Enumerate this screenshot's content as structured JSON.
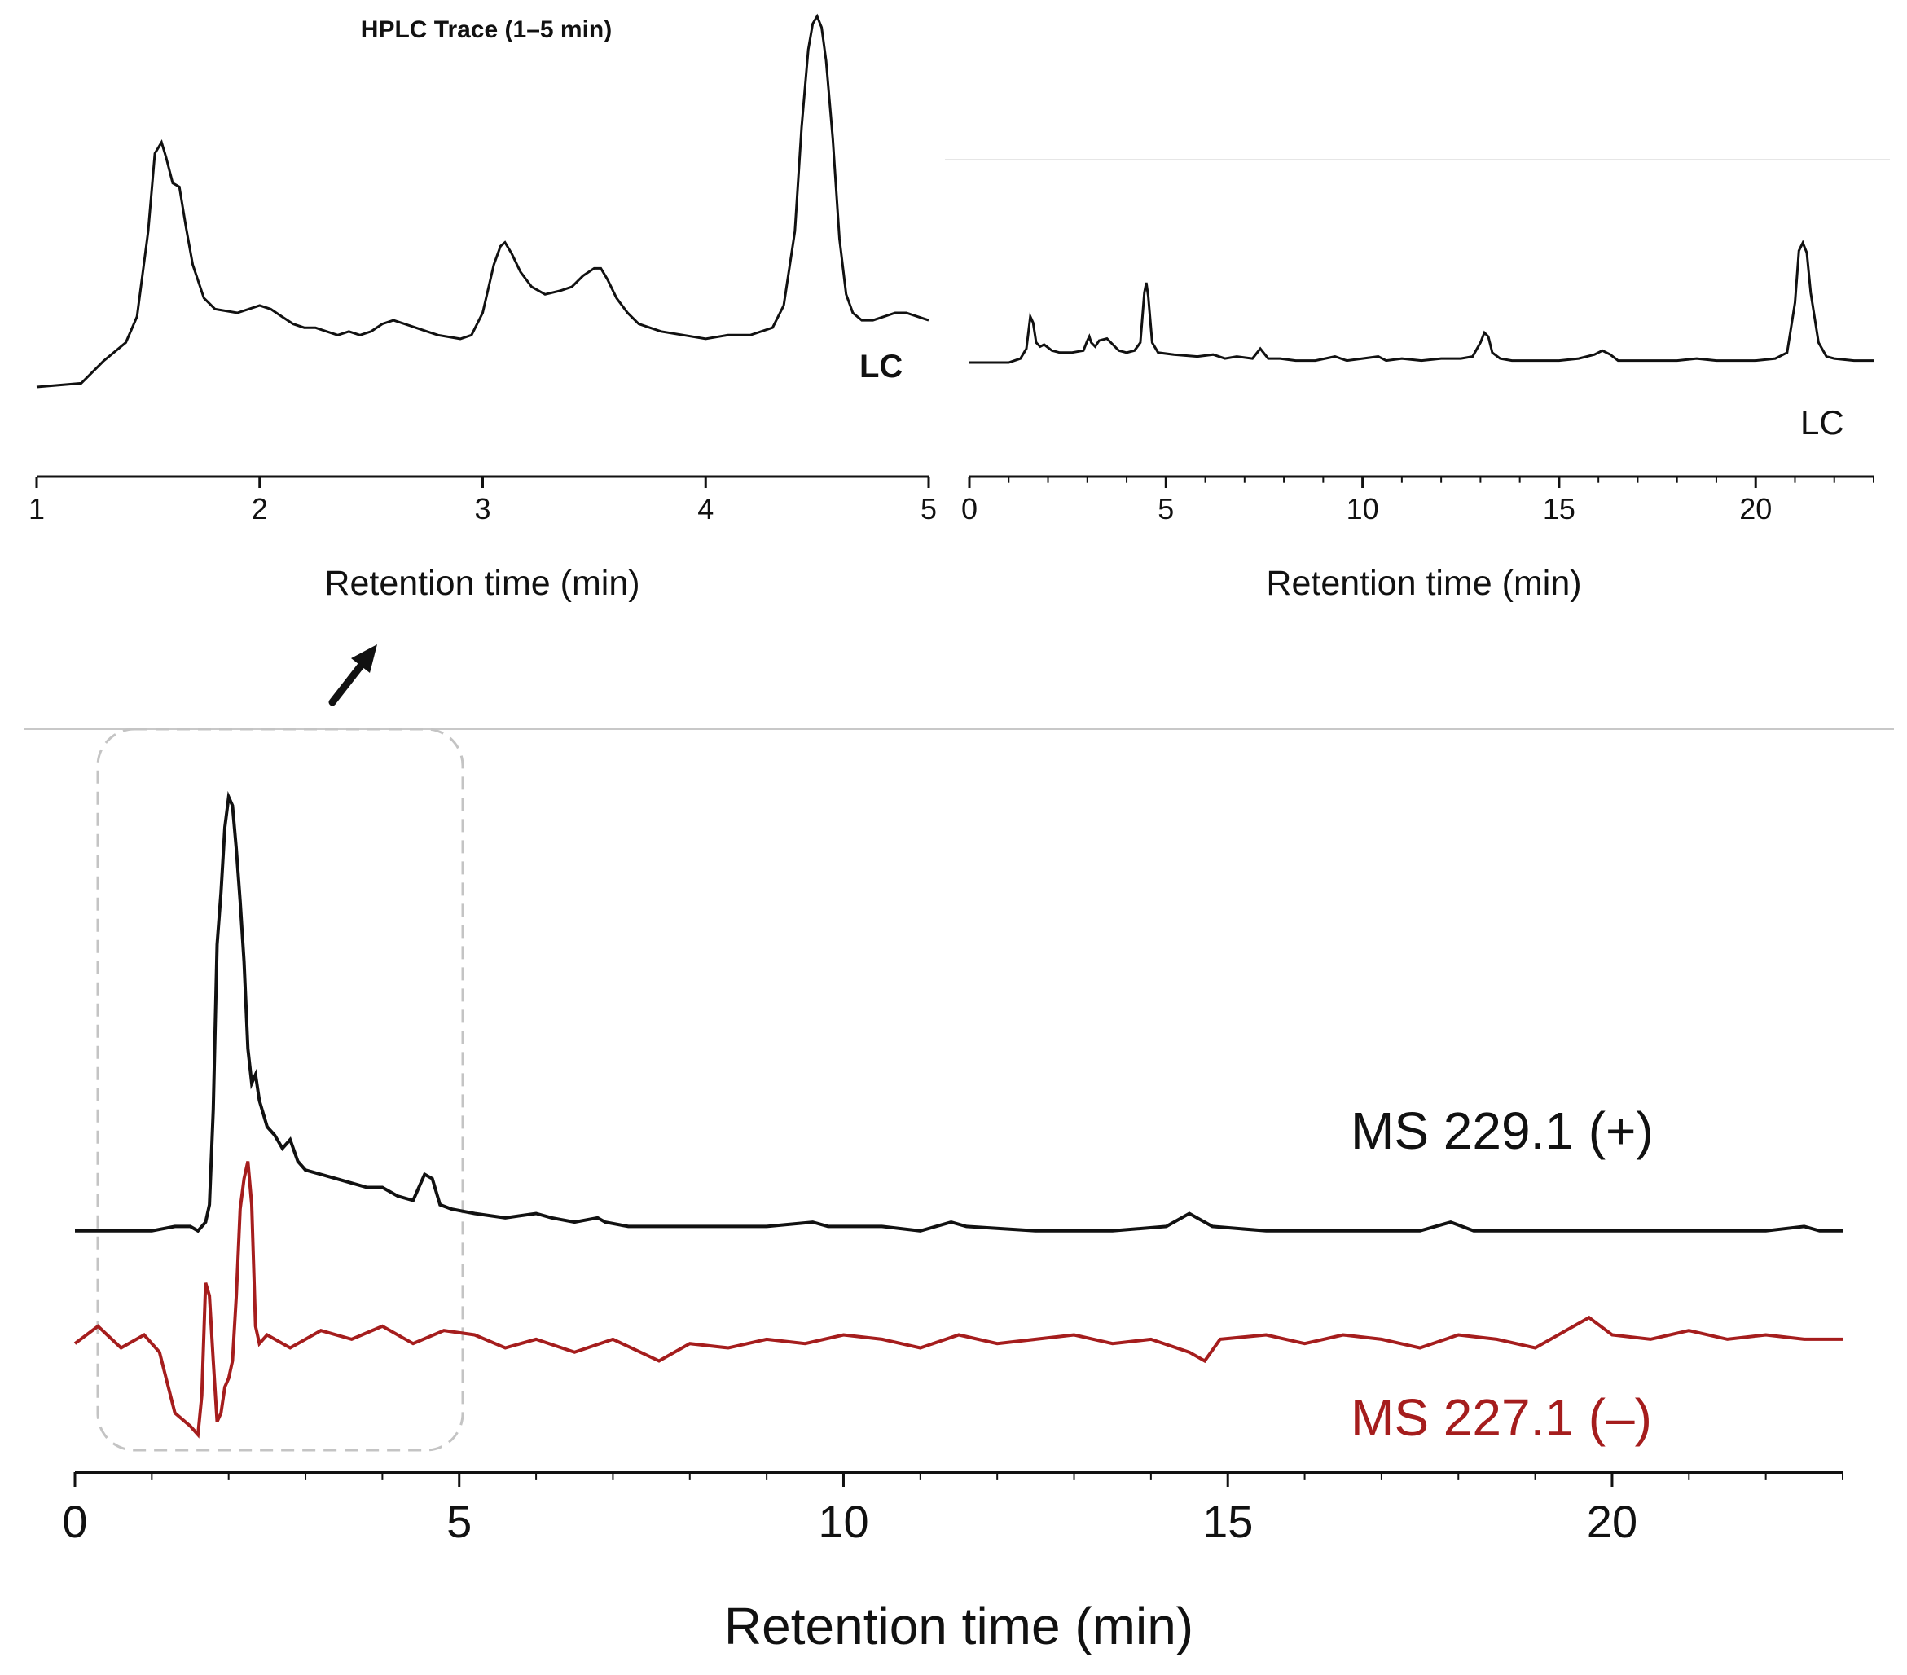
{
  "colors": {
    "black_trace": "#111111",
    "red_trace": "#a51d1d",
    "divider": "#c8c8c8",
    "dashed_box": "#c4c4c4"
  },
  "chart_data": [
    {
      "id": "inset",
      "type": "line",
      "title": "HPLC Trace (1–5 min)",
      "xlabel": "Retention time (min)",
      "ylabel": "",
      "xlim": [
        1,
        5
      ],
      "ylim": [
        0,
        1
      ],
      "xticks": [
        1,
        2,
        3,
        4,
        5
      ],
      "series": [
        {
          "name": "LC",
          "label_text": "LC",
          "x": [
            1.0,
            1.2,
            1.3,
            1.4,
            1.45,
            1.5,
            1.53,
            1.56,
            1.58,
            1.61,
            1.64,
            1.67,
            1.7,
            1.75,
            1.8,
            1.9,
            2.0,
            2.05,
            2.1,
            2.15,
            2.2,
            2.25,
            2.3,
            2.35,
            2.4,
            2.45,
            2.5,
            2.55,
            2.6,
            2.65,
            2.7,
            2.75,
            2.8,
            2.9,
            2.95,
            3.0,
            3.05,
            3.08,
            3.1,
            3.13,
            3.17,
            3.22,
            3.28,
            3.35,
            3.4,
            3.45,
            3.5,
            3.53,
            3.56,
            3.6,
            3.65,
            3.7,
            3.75,
            3.8,
            3.9,
            4.0,
            4.1,
            4.2,
            4.3,
            4.35,
            4.4,
            4.43,
            4.46,
            4.48,
            4.5,
            4.52,
            4.54,
            4.57,
            4.6,
            4.63,
            4.66,
            4.7,
            4.75,
            4.8,
            4.85,
            4.9,
            4.95,
            5.0
          ],
          "y": [
            0.0,
            0.01,
            0.07,
            0.12,
            0.19,
            0.42,
            0.63,
            0.66,
            0.62,
            0.55,
            0.54,
            0.43,
            0.33,
            0.24,
            0.21,
            0.2,
            0.22,
            0.21,
            0.19,
            0.17,
            0.16,
            0.16,
            0.15,
            0.14,
            0.15,
            0.14,
            0.15,
            0.17,
            0.18,
            0.17,
            0.16,
            0.15,
            0.14,
            0.13,
            0.14,
            0.2,
            0.33,
            0.38,
            0.39,
            0.36,
            0.31,
            0.27,
            0.25,
            0.26,
            0.27,
            0.3,
            0.32,
            0.32,
            0.29,
            0.24,
            0.2,
            0.17,
            0.16,
            0.15,
            0.14,
            0.13,
            0.14,
            0.14,
            0.16,
            0.22,
            0.42,
            0.7,
            0.91,
            0.98,
            1.0,
            0.97,
            0.88,
            0.67,
            0.4,
            0.25,
            0.2,
            0.18,
            0.18,
            0.19,
            0.2,
            0.2,
            0.19,
            0.18
          ]
        }
      ]
    },
    {
      "id": "overview",
      "type": "line",
      "title": "",
      "xlabel": "Retention time (min)",
      "ylabel": "",
      "xlim": [
        0,
        23
      ],
      "ylim": [
        0,
        1
      ],
      "xticks": [
        0,
        5,
        10,
        15,
        20
      ],
      "series": [
        {
          "name": "LC",
          "label_text": "LC",
          "x": [
            0,
            1.0,
            1.3,
            1.45,
            1.55,
            1.62,
            1.7,
            1.8,
            1.9,
            2.1,
            2.3,
            2.6,
            2.9,
            3.0,
            3.05,
            3.1,
            3.2,
            3.3,
            3.5,
            3.6,
            3.8,
            4.0,
            4.2,
            4.35,
            4.45,
            4.5,
            4.55,
            4.65,
            4.8,
            5.2,
            5.8,
            6.2,
            6.5,
            6.8,
            7.2,
            7.4,
            7.6,
            7.9,
            8.3,
            8.8,
            9.3,
            9.6,
            10.0,
            10.4,
            10.6,
            11.0,
            11.5,
            12.0,
            12.5,
            12.8,
            13.0,
            13.1,
            13.2,
            13.3,
            13.5,
            13.8,
            14.5,
            15.0,
            15.5,
            15.9,
            16.1,
            16.3,
            16.5,
            17.0,
            18.0,
            18.5,
            19.0,
            19.5,
            20.0,
            20.5,
            20.8,
            21.0,
            21.1,
            21.2,
            21.3,
            21.4,
            21.6,
            21.8,
            22.0,
            22.5,
            23.0
          ],
          "y": [
            0.0,
            0.0,
            0.02,
            0.07,
            0.23,
            0.2,
            0.1,
            0.08,
            0.09,
            0.06,
            0.05,
            0.05,
            0.06,
            0.11,
            0.13,
            0.1,
            0.08,
            0.11,
            0.12,
            0.1,
            0.06,
            0.05,
            0.06,
            0.1,
            0.35,
            0.4,
            0.33,
            0.1,
            0.05,
            0.04,
            0.03,
            0.04,
            0.02,
            0.03,
            0.02,
            0.07,
            0.02,
            0.02,
            0.01,
            0.01,
            0.03,
            0.01,
            0.02,
            0.03,
            0.01,
            0.02,
            0.01,
            0.02,
            0.02,
            0.03,
            0.1,
            0.15,
            0.13,
            0.05,
            0.02,
            0.01,
            0.01,
            0.01,
            0.02,
            0.04,
            0.06,
            0.04,
            0.01,
            0.01,
            0.01,
            0.02,
            0.01,
            0.01,
            0.01,
            0.02,
            0.05,
            0.3,
            0.56,
            0.6,
            0.55,
            0.35,
            0.1,
            0.03,
            0.02,
            0.01,
            0.01
          ]
        }
      ]
    },
    {
      "id": "ms",
      "type": "line",
      "title": "",
      "xlabel": "Retention time (min)",
      "ylabel": "",
      "xlim": [
        0,
        23
      ],
      "ylim": [
        -0.5,
        1.1
      ],
      "xticks": [
        0,
        5,
        10,
        15,
        20
      ],
      "series": [
        {
          "name": "MS 229.1 (+)",
          "label_text": "MS 229.1 (+)",
          "color": "#111111",
          "x": [
            0,
            1.0,
            1.3,
            1.5,
            1.6,
            1.7,
            1.75,
            1.8,
            1.85,
            1.9,
            1.95,
            2.0,
            2.05,
            2.1,
            2.15,
            2.2,
            2.25,
            2.3,
            2.35,
            2.4,
            2.5,
            2.6,
            2.7,
            2.8,
            2.9,
            3.0,
            3.2,
            3.4,
            3.6,
            3.8,
            4.0,
            4.2,
            4.4,
            4.55,
            4.65,
            4.75,
            4.9,
            5.2,
            5.6,
            6.0,
            6.2,
            6.5,
            6.8,
            6.9,
            7.2,
            8.0,
            9.0,
            9.6,
            9.8,
            10.5,
            11.0,
            11.4,
            11.6,
            12.5,
            13.5,
            14.2,
            14.5,
            14.8,
            15.5,
            16.5,
            17.5,
            17.9,
            18.2,
            19.0,
            20.0,
            21.0,
            22.0,
            22.5,
            22.7,
            23.0
          ],
          "y": [
            0.0,
            0.0,
            0.01,
            0.01,
            0.0,
            0.02,
            0.06,
            0.28,
            0.66,
            0.78,
            0.93,
            1.0,
            0.98,
            0.88,
            0.76,
            0.62,
            0.42,
            0.34,
            0.36,
            0.3,
            0.24,
            0.22,
            0.19,
            0.21,
            0.16,
            0.14,
            0.13,
            0.12,
            0.11,
            0.1,
            0.1,
            0.08,
            0.07,
            0.13,
            0.12,
            0.06,
            0.05,
            0.04,
            0.03,
            0.04,
            0.03,
            0.02,
            0.03,
            0.02,
            0.01,
            0.01,
            0.01,
            0.02,
            0.01,
            0.01,
            0.0,
            0.02,
            0.01,
            0.0,
            0.0,
            0.01,
            0.04,
            0.01,
            0.0,
            0.0,
            0.0,
            0.02,
            0.0,
            0.0,
            0.0,
            0.0,
            0.0,
            0.01,
            0.0,
            0.0
          ]
        },
        {
          "name": "MS 227.1 (–)",
          "label_text": "MS 227.1 (–)",
          "color": "#a51d1d",
          "x": [
            0,
            0.3,
            0.6,
            0.9,
            1.1,
            1.3,
            1.5,
            1.6,
            1.65,
            1.7,
            1.75,
            1.8,
            1.85,
            1.9,
            1.95,
            2.0,
            2.05,
            2.1,
            2.15,
            2.2,
            2.25,
            2.3,
            2.35,
            2.4,
            2.5,
            2.8,
            3.2,
            3.6,
            4.0,
            4.4,
            4.8,
            5.2,
            5.6,
            6.0,
            6.5,
            7.0,
            7.6,
            8.0,
            8.5,
            9.0,
            9.5,
            10.0,
            10.5,
            11.0,
            11.5,
            12.0,
            12.5,
            13.0,
            13.5,
            14.0,
            14.5,
            14.7,
            14.9,
            15.5,
            16.0,
            16.5,
            17.0,
            17.5,
            18.0,
            18.5,
            19.0,
            19.5,
            19.7,
            20.0,
            20.5,
            21.0,
            21.5,
            22.0,
            22.5,
            23.0
          ],
          "y": [
            -0.26,
            -0.22,
            -0.27,
            -0.24,
            -0.28,
            -0.42,
            -0.45,
            -0.47,
            -0.38,
            -0.12,
            -0.15,
            -0.3,
            -0.44,
            -0.42,
            -0.36,
            -0.34,
            -0.3,
            -0.15,
            0.05,
            0.12,
            0.16,
            0.06,
            -0.22,
            -0.26,
            -0.24,
            -0.27,
            -0.23,
            -0.25,
            -0.22,
            -0.26,
            -0.23,
            -0.24,
            -0.27,
            -0.25,
            -0.28,
            -0.25,
            -0.3,
            -0.26,
            -0.27,
            -0.25,
            -0.26,
            -0.24,
            -0.25,
            -0.27,
            -0.24,
            -0.26,
            -0.25,
            -0.24,
            -0.26,
            -0.25,
            -0.28,
            -0.3,
            -0.25,
            -0.24,
            -0.26,
            -0.24,
            -0.25,
            -0.27,
            -0.24,
            -0.25,
            -0.27,
            -0.22,
            -0.2,
            -0.24,
            -0.25,
            -0.23,
            -0.25,
            -0.24,
            -0.25,
            -0.25
          ]
        }
      ]
    }
  ]
}
